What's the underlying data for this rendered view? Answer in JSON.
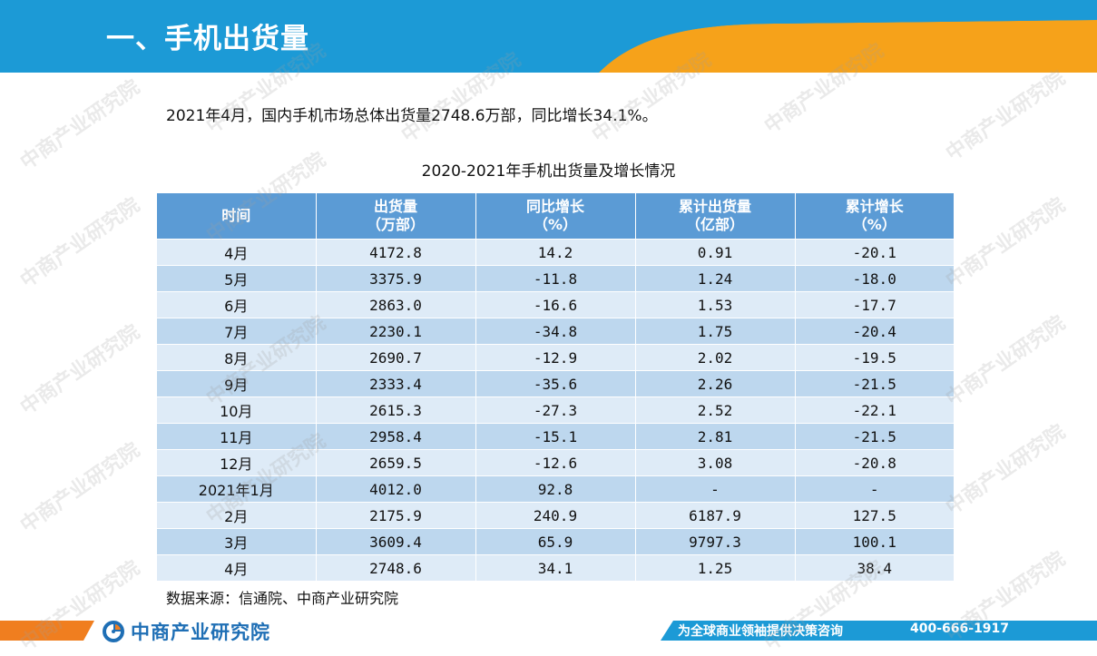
{
  "header": {
    "title": "一、手机出货量",
    "colors": {
      "blue": "#1c9ad6",
      "orange": "#f6a21a"
    }
  },
  "summary": "2021年4月，国内手机市场总体出货量2748.6万部，同比增长34.1%。",
  "table": {
    "title": "2020-2021年手机出货量及增长情况",
    "headers": [
      {
        "line1": "时间",
        "line2": ""
      },
      {
        "line1": "出货量",
        "line2": "（万部）"
      },
      {
        "line1": "同比增长",
        "line2": "（%）"
      },
      {
        "line1": "累计出货量",
        "line2": "（亿部）"
      },
      {
        "line1": "累计增长",
        "line2": "（%）"
      }
    ],
    "rows": [
      [
        "4月",
        "4172.8",
        "14.2",
        "0.91",
        "-20.1"
      ],
      [
        "5月",
        "3375.9",
        "-11.8",
        "1.24",
        "-18.0"
      ],
      [
        "6月",
        "2863.0",
        "-16.6",
        "1.53",
        "-17.7"
      ],
      [
        "7月",
        "2230.1",
        "-34.8",
        "1.75",
        "-20.4"
      ],
      [
        "8月",
        "2690.7",
        "-12.9",
        "2.02",
        "-19.5"
      ],
      [
        "9月",
        "2333.4",
        "-35.6",
        "2.26",
        "-21.5"
      ],
      [
        "10月",
        "2615.3",
        "-27.3",
        "2.52",
        "-22.1"
      ],
      [
        "11月",
        "2958.4",
        "-15.1",
        "2.81",
        "-21.5"
      ],
      [
        "12月",
        "2659.5",
        "-12.6",
        "3.08",
        "-20.8"
      ],
      [
        "2021年1月",
        "4012.0",
        "92.8",
        "-",
        "-"
      ],
      [
        "2月",
        "2175.9",
        "240.9",
        "6187.9",
        "127.5"
      ],
      [
        "3月",
        "3609.4",
        "65.9",
        "9797.3",
        "100.1"
      ],
      [
        "4月",
        "2748.6",
        "34.1",
        "1.25",
        "38.4"
      ]
    ],
    "colors": {
      "header": "#5b9bd5",
      "row_light": "#deebf7",
      "row_dark": "#bdd7ee"
    }
  },
  "source": "数据来源：信通院、中商产业研究院",
  "footer": {
    "logo_text": "中商产业研究院",
    "slogan": "为全球商业领袖提供决策咨询",
    "phone": "400-666-1917"
  },
  "watermark": {
    "text": "中商产业研究院",
    "url": "www.askci.com/reports"
  }
}
